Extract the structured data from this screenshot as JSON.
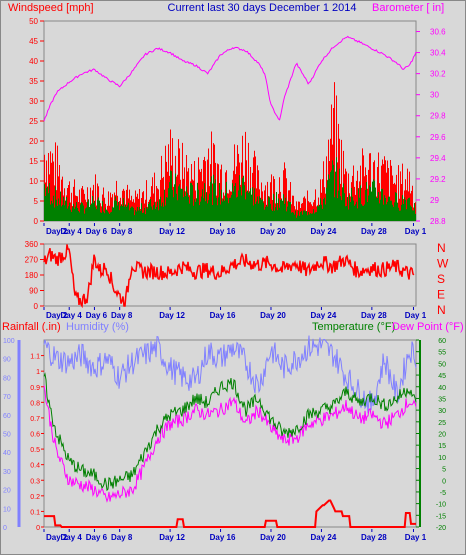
{
  "header": {
    "left": "Windspeed [mph]",
    "center": "Current last 30 days December 1 2014",
    "right": "Barometer [ in]"
  },
  "colors": {
    "background": "#d8d8d8",
    "wind": "#ff0000",
    "gust_fill": "#008000",
    "barometer": "#ff00ff",
    "title": "#0000c0",
    "rain": "#ff0000",
    "humidity": "#8080ff",
    "temperature": "#008000",
    "dewpoint": "#ff00ff",
    "compass": "#ff0000"
  },
  "x_tick_labels": [
    "Day 2",
    "Day 4",
    "Day 6",
    "Day 8",
    "Day 12",
    "Day 16",
    "Day 20",
    "Day 24",
    "Day 28",
    "Day 1"
  ],
  "chart_data": [
    {
      "type": "area",
      "id": "wind-barometer",
      "xlim": [
        0,
        29.5
      ],
      "left_axis": {
        "label": "Windspeed [mph]",
        "ylim": [
          0,
          50
        ],
        "ticks": [
          0,
          5,
          10,
          15,
          20,
          25,
          30,
          35,
          40,
          45,
          50
        ]
      },
      "right_axis": {
        "label": "Barometer [ in]",
        "ylim": [
          28.8,
          30.7
        ],
        "ticks": [
          "28.8",
          "29",
          "29.2",
          "29.4",
          "29.6",
          "29.8",
          "30",
          "30.2",
          "30.4",
          "30.6"
        ]
      },
      "series": [
        {
          "kind": "wind_speed_peaks",
          "x": [
            0,
            1,
            2,
            3,
            4,
            5,
            6,
            7,
            8,
            9,
            10,
            11,
            12,
            13,
            14,
            15,
            16,
            17,
            18,
            19,
            20,
            21,
            22,
            23,
            24,
            25,
            26,
            27,
            28,
            29,
            29.5
          ],
          "values": [
            26,
            20,
            12,
            9,
            13,
            8,
            14,
            7,
            10,
            14,
            25,
            20,
            16,
            25,
            18,
            20,
            27,
            14,
            13,
            16,
            5,
            8,
            12,
            36,
            15,
            18,
            20,
            18,
            14,
            16,
            7
          ]
        },
        {
          "kind": "wind_average",
          "x": [
            0,
            1,
            2,
            3,
            4,
            5,
            6,
            7,
            8,
            9,
            10,
            11,
            12,
            13,
            14,
            15,
            16,
            17,
            18,
            19,
            20,
            21,
            22,
            23,
            24,
            25,
            26,
            27,
            28,
            29,
            29.5
          ],
          "values": [
            11,
            7,
            5,
            4,
            6,
            4,
            6,
            3,
            4,
            6,
            11,
            9,
            8,
            11,
            8,
            9,
            12,
            6,
            6,
            7,
            2,
            3,
            5,
            15,
            7,
            8,
            9,
            8,
            6,
            7,
            3
          ]
        },
        {
          "kind": "barometer",
          "x": [
            0,
            0.5,
            1,
            2,
            3,
            4,
            5,
            6,
            7,
            8,
            9,
            10,
            11,
            12,
            13,
            14,
            15,
            16,
            17,
            17.5,
            18,
            18.7,
            19,
            20,
            20.5,
            21,
            22,
            23,
            24,
            25,
            26,
            27,
            28,
            28.5,
            29,
            29.5
          ],
          "values": [
            29.75,
            29.9,
            30.02,
            30.12,
            30.2,
            30.24,
            30.15,
            30.08,
            30.22,
            30.38,
            30.44,
            30.4,
            30.32,
            30.28,
            30.2,
            30.38,
            30.45,
            30.42,
            30.3,
            30.2,
            29.9,
            29.75,
            29.95,
            30.3,
            30.2,
            30.1,
            30.32,
            30.46,
            30.55,
            30.5,
            30.44,
            30.38,
            30.3,
            30.24,
            30.28,
            30.4
          ]
        }
      ]
    },
    {
      "type": "line",
      "id": "wind-direction",
      "xlim": [
        0,
        29.5
      ],
      "left_axis": {
        "ylim": [
          0,
          360
        ],
        "ticks": [
          0,
          90,
          180,
          270,
          360
        ]
      },
      "right_axis": {
        "labels": [
          "N",
          "W",
          "S",
          "E",
          "N"
        ]
      },
      "series": [
        {
          "kind": "direction",
          "x": [
            0,
            0.5,
            1,
            1.5,
            2,
            2.5,
            3,
            3.5,
            4,
            4.5,
            5,
            5.5,
            6,
            6.5,
            7,
            7.5,
            8,
            9,
            10,
            11,
            12,
            13,
            14,
            15,
            16,
            17,
            18,
            19,
            20,
            21,
            22,
            23,
            24,
            25,
            26,
            27,
            28,
            29,
            29.5
          ],
          "values": [
            250,
            300,
            270,
            300,
            320,
            40,
            30,
            60,
            280,
            200,
            230,
            120,
            60,
            20,
            250,
            210,
            200,
            200,
            190,
            230,
            200,
            210,
            190,
            240,
            260,
            240,
            250,
            210,
            250,
            200,
            260,
            230,
            270,
            200,
            220,
            210,
            230,
            190,
            180
          ]
        }
      ]
    },
    {
      "type": "line",
      "id": "rain-humidity-temp",
      "xlim": [
        0,
        29.5
      ],
      "left_axis": {
        "label": "Rainfall (.in)",
        "ylim": [
          0,
          1.2
        ],
        "ticks": [
          "0",
          "0.1",
          "0.2",
          "0.3",
          "0.4",
          "0.5",
          "0.6",
          "0.7",
          "0.8",
          "0.9",
          "1",
          "1.1"
        ]
      },
      "humidity_axis": {
        "label": "Humidity (%)",
        "ylim": [
          0,
          100
        ],
        "ticks": [
          0,
          10,
          20,
          30,
          40,
          50,
          60,
          70,
          80,
          90,
          100
        ]
      },
      "right_axis": {
        "label": "Temperature (°F)",
        "label2": "Dew Point (°F)",
        "ylim": [
          -20,
          60
        ],
        "ticks": [
          -20,
          -15,
          -10,
          -5,
          0,
          5,
          10,
          15,
          20,
          25,
          30,
          35,
          40,
          45,
          50,
          55,
          60
        ]
      },
      "series": [
        {
          "kind": "humidity",
          "x": [
            0,
            1,
            2,
            3,
            4,
            5,
            6,
            7,
            8,
            9,
            10,
            11,
            12,
            13,
            14,
            15,
            16,
            17,
            18,
            19,
            20,
            21,
            22,
            23,
            24,
            25,
            26,
            27,
            28,
            29,
            29.5
          ],
          "values": [
            97,
            90,
            88,
            92,
            85,
            90,
            80,
            88,
            92,
            96,
            85,
            80,
            78,
            94,
            90,
            96,
            88,
            75,
            95,
            85,
            90,
            96,
            97,
            92,
            80,
            72,
            65,
            90,
            70,
            95,
            92
          ]
        },
        {
          "kind": "temperature",
          "x": [
            0,
            0.5,
            1,
            2,
            3,
            4,
            5,
            6,
            7,
            8,
            9,
            10,
            11,
            12,
            13,
            14,
            15,
            16,
            17,
            18,
            19,
            20,
            21,
            22,
            23,
            24,
            25,
            26,
            27,
            28,
            29,
            29.5
          ],
          "values": [
            45,
            30,
            20,
            8,
            4,
            2,
            -2,
            0,
            2,
            12,
            22,
            28,
            30,
            35,
            33,
            40,
            42,
            30,
            35,
            26,
            20,
            22,
            28,
            30,
            32,
            38,
            33,
            36,
            32,
            35,
            40,
            32
          ]
        },
        {
          "kind": "dewpoint",
          "x": [
            0,
            0.5,
            1,
            2,
            3,
            4,
            5,
            6,
            7,
            8,
            9,
            10,
            11,
            12,
            13,
            14,
            15,
            16,
            17,
            18,
            19,
            20,
            21,
            22,
            23,
            24,
            25,
            26,
            27,
            28,
            29,
            29.5
          ],
          "values": [
            40,
            25,
            12,
            0,
            -2,
            -4,
            -8,
            -6,
            -4,
            6,
            18,
            24,
            26,
            30,
            28,
            30,
            34,
            24,
            30,
            22,
            17,
            18,
            24,
            26,
            28,
            32,
            26,
            28,
            24,
            28,
            34,
            30
          ]
        },
        {
          "kind": "rainfall",
          "x": [
            0,
            0.8,
            0.9,
            1.3,
            1.4,
            10.5,
            10.6,
            11,
            11.1,
            17.5,
            17.6,
            18.4,
            18.5,
            21.5,
            21.6,
            22.1,
            22.2,
            22.6,
            22.7,
            23,
            23.1,
            23.6,
            23.7,
            24.2,
            24.3,
            28.6,
            28.7,
            29,
            29.1,
            29.5
          ],
          "values": [
            0.07,
            0.07,
            0.01,
            0.01,
            0,
            0,
            0.05,
            0.05,
            0,
            0,
            0.04,
            0.04,
            0,
            0,
            0.1,
            0.14,
            0.14,
            0.17,
            0.17,
            0.12,
            0.1,
            0.1,
            0.07,
            0.07,
            0,
            0,
            0.09,
            0.09,
            0.02,
            0.02
          ]
        }
      ]
    }
  ],
  "panel2": {
    "left_labels": [
      "Rainfall (.in)",
      "Humidity (%)"
    ],
    "right_labels": [
      "Temperature (°F)",
      "Dew Point (°F)"
    ]
  }
}
